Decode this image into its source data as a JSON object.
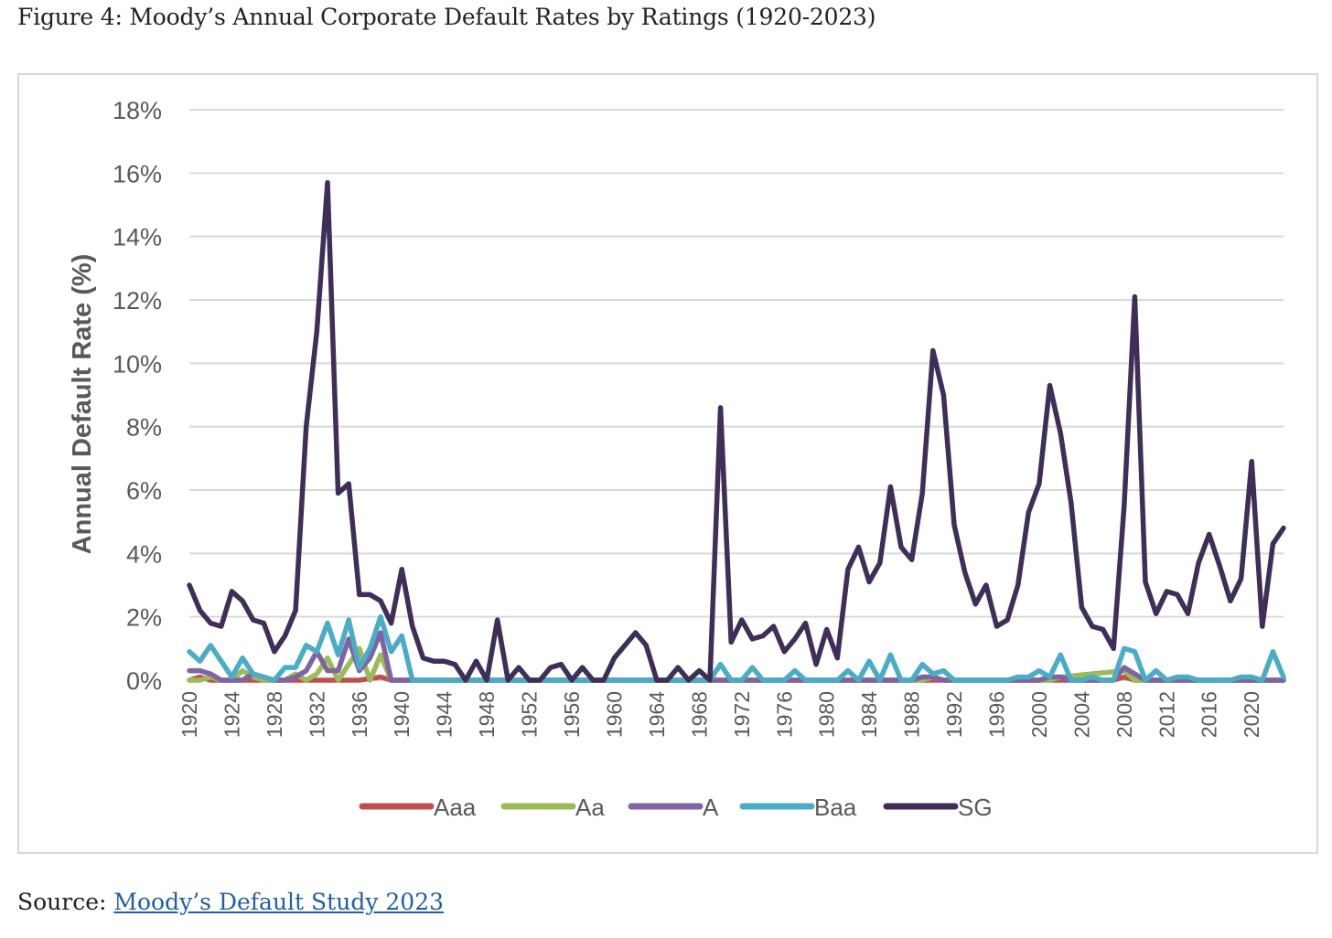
{
  "caption": "Figure 4: Moody’s Annual Corporate Default Rates by Ratings (1920-2023)",
  "source": {
    "prefix": "Source: ",
    "link_text": "Moody’s Default Study 2023"
  },
  "chart_data": {
    "type": "line",
    "ylabel": "Annual Default Rate (%)",
    "xlabel": "",
    "ylim": [
      0,
      18
    ],
    "yticks": [
      "0%",
      "2%",
      "4%",
      "6%",
      "8%",
      "10%",
      "12%",
      "14%",
      "16%",
      "18%"
    ],
    "xlim": [
      1920,
      2023
    ],
    "xticks": [
      "1920",
      "1924",
      "1928",
      "1932",
      "1936",
      "1940",
      "1944",
      "1948",
      "1952",
      "1956",
      "1960",
      "1964",
      "1968",
      "1972",
      "1976",
      "1980",
      "1984",
      "1988",
      "1992",
      "1996",
      "2000",
      "2004",
      "2008",
      "2012",
      "2016",
      "2020"
    ],
    "grid": true,
    "legend_position": "bottom",
    "series": [
      {
        "name": "Aaa",
        "color": "#c0504d",
        "x": [
          1920,
          1921,
          1922,
          1923,
          1930,
          1936,
          1938,
          1939,
          1940,
          2007,
          2008,
          2009,
          2010,
          2023
        ],
        "y": [
          0.0,
          0.1,
          0.0,
          0.0,
          0.0,
          0.0,
          0.1,
          0.0,
          0.0,
          0.0,
          0.1,
          0.0,
          0.0,
          0.0
        ]
      },
      {
        "name": "Aa",
        "color": "#9bbb59",
        "x": [
          1920,
          1921,
          1922,
          1923,
          1924,
          1925,
          1926,
          1927,
          1928,
          1929,
          1930,
          1931,
          1932,
          1933,
          1934,
          1935,
          1936,
          1937,
          1938,
          1939,
          1940,
          1983,
          1989,
          1990,
          1991,
          2001,
          2002,
          2008,
          2009,
          2010,
          2023
        ],
        "y": [
          0.0,
          0.0,
          0.1,
          0.0,
          0.0,
          0.3,
          0.1,
          0.0,
          0.0,
          0.0,
          0.2,
          0.0,
          0.2,
          0.7,
          0.0,
          0.5,
          1.0,
          0.0,
          0.8,
          0.0,
          0.0,
          0.0,
          0.0,
          0.1,
          0.0,
          0.0,
          0.1,
          0.3,
          0.0,
          0.0,
          0.0
        ]
      },
      {
        "name": "A",
        "color": "#8064a2",
        "x": [
          1920,
          1921,
          1922,
          1923,
          1924,
          1925,
          1926,
          1927,
          1928,
          1929,
          1930,
          1931,
          1932,
          1933,
          1934,
          1935,
          1936,
          1937,
          1938,
          1939,
          1940,
          1970,
          1988,
          1989,
          1990,
          1991,
          1998,
          1999,
          2000,
          2001,
          2002,
          2003,
          2007,
          2008,
          2009,
          2010,
          2014,
          2015,
          2023
        ],
        "y": [
          0.3,
          0.3,
          0.2,
          0.0,
          0.0,
          0.0,
          0.2,
          0.1,
          0.0,
          0.0,
          0.1,
          0.3,
          0.9,
          0.3,
          0.3,
          1.3,
          0.3,
          0.7,
          1.5,
          0.0,
          0.0,
          0.0,
          0.0,
          0.1,
          0.1,
          0.0,
          0.0,
          0.0,
          0.0,
          0.1,
          0.1,
          0.0,
          0.0,
          0.4,
          0.2,
          0.0,
          0.0,
          0.0,
          0.0
        ]
      },
      {
        "name": "Baa",
        "color": "#4bacc6",
        "x": [
          1920,
          1921,
          1922,
          1923,
          1924,
          1925,
          1926,
          1927,
          1928,
          1929,
          1930,
          1931,
          1932,
          1933,
          1934,
          1935,
          1936,
          1937,
          1938,
          1939,
          1940,
          1941,
          1968,
          1969,
          1970,
          1971,
          1972,
          1973,
          1974,
          1975,
          1976,
          1977,
          1978,
          1979,
          1980,
          1981,
          1982,
          1983,
          1984,
          1985,
          1986,
          1987,
          1988,
          1989,
          1990,
          1991,
          1992,
          1993,
          1994,
          1995,
          1996,
          1997,
          1998,
          1999,
          2000,
          2001,
          2002,
          2003,
          2004,
          2005,
          2006,
          2007,
          2008,
          2009,
          2010,
          2011,
          2012,
          2013,
          2014,
          2015,
          2016,
          2017,
          2018,
          2019,
          2020,
          2021,
          2022,
          2023
        ],
        "y": [
          0.9,
          0.6,
          1.1,
          0.6,
          0.1,
          0.7,
          0.2,
          0.1,
          0.0,
          0.4,
          0.4,
          1.1,
          0.9,
          1.8,
          0.8,
          1.9,
          0.4,
          1.0,
          2.0,
          0.9,
          1.4,
          0.0,
          0.0,
          0.0,
          0.5,
          0.0,
          0.0,
          0.4,
          0.0,
          0.0,
          0.0,
          0.3,
          0.0,
          0.0,
          0.0,
          0.0,
          0.3,
          0.0,
          0.6,
          0.0,
          0.8,
          0.0,
          0.0,
          0.5,
          0.2,
          0.3,
          0.0,
          0.0,
          0.0,
          0.0,
          0.0,
          0.0,
          0.1,
          0.1,
          0.3,
          0.1,
          0.8,
          0.0,
          0.0,
          0.1,
          0.0,
          0.0,
          1.0,
          0.9,
          0.0,
          0.3,
          0.0,
          0.1,
          0.1,
          0.0,
          0.0,
          0.0,
          0.0,
          0.1,
          0.1,
          0.0,
          0.9,
          0.1
        ]
      },
      {
        "name": "SG",
        "color": "#3f2e57",
        "x": [
          1920,
          1921,
          1922,
          1923,
          1924,
          1925,
          1926,
          1927,
          1928,
          1929,
          1930,
          1931,
          1932,
          1933,
          1934,
          1935,
          1936,
          1937,
          1938,
          1939,
          1940,
          1941,
          1942,
          1943,
          1944,
          1945,
          1946,
          1947,
          1948,
          1949,
          1950,
          1951,
          1952,
          1953,
          1954,
          1955,
          1956,
          1957,
          1958,
          1959,
          1960,
          1961,
          1962,
          1963,
          1964,
          1965,
          1966,
          1967,
          1968,
          1969,
          1970,
          1971,
          1972,
          1973,
          1974,
          1975,
          1976,
          1977,
          1978,
          1979,
          1980,
          1981,
          1982,
          1983,
          1984,
          1985,
          1986,
          1987,
          1988,
          1989,
          1990,
          1991,
          1992,
          1993,
          1994,
          1995,
          1996,
          1997,
          1998,
          1999,
          2000,
          2001,
          2002,
          2003,
          2004,
          2005,
          2006,
          2007,
          2008,
          2009,
          2010,
          2011,
          2012,
          2013,
          2014,
          2015,
          2016,
          2017,
          2018,
          2019,
          2020,
          2021,
          2022,
          2023
        ],
        "y": [
          3.0,
          2.2,
          1.8,
          1.7,
          2.8,
          2.5,
          1.9,
          1.8,
          0.9,
          1.4,
          2.2,
          8.0,
          11.0,
          15.7,
          5.9,
          6.2,
          2.7,
          2.7,
          2.5,
          1.8,
          3.5,
          1.7,
          0.7,
          0.6,
          0.6,
          0.5,
          0.0,
          0.6,
          0.0,
          1.9,
          0.0,
          0.4,
          0.0,
          0.0,
          0.4,
          0.5,
          0.0,
          0.4,
          0.0,
          0.0,
          0.7,
          1.1,
          1.5,
          1.1,
          0.0,
          0.0,
          0.4,
          0.0,
          0.3,
          0.0,
          8.6,
          1.2,
          1.9,
          1.3,
          1.4,
          1.7,
          0.9,
          1.3,
          1.8,
          0.5,
          1.6,
          0.7,
          3.5,
          4.2,
          3.1,
          3.7,
          6.1,
          4.2,
          3.8,
          5.9,
          10.4,
          9.0,
          4.9,
          3.4,
          2.4,
          3.0,
          1.7,
          1.9,
          3.0,
          5.3,
          6.2,
          9.3,
          7.8,
          5.6,
          2.3,
          1.7,
          1.6,
          1.0,
          5.5,
          12.1,
          3.1,
          2.1,
          2.8,
          2.7,
          2.1,
          3.7,
          4.6,
          3.6,
          2.5,
          3.2,
          6.9,
          1.7,
          4.3,
          4.8
        ]
      }
    ]
  }
}
